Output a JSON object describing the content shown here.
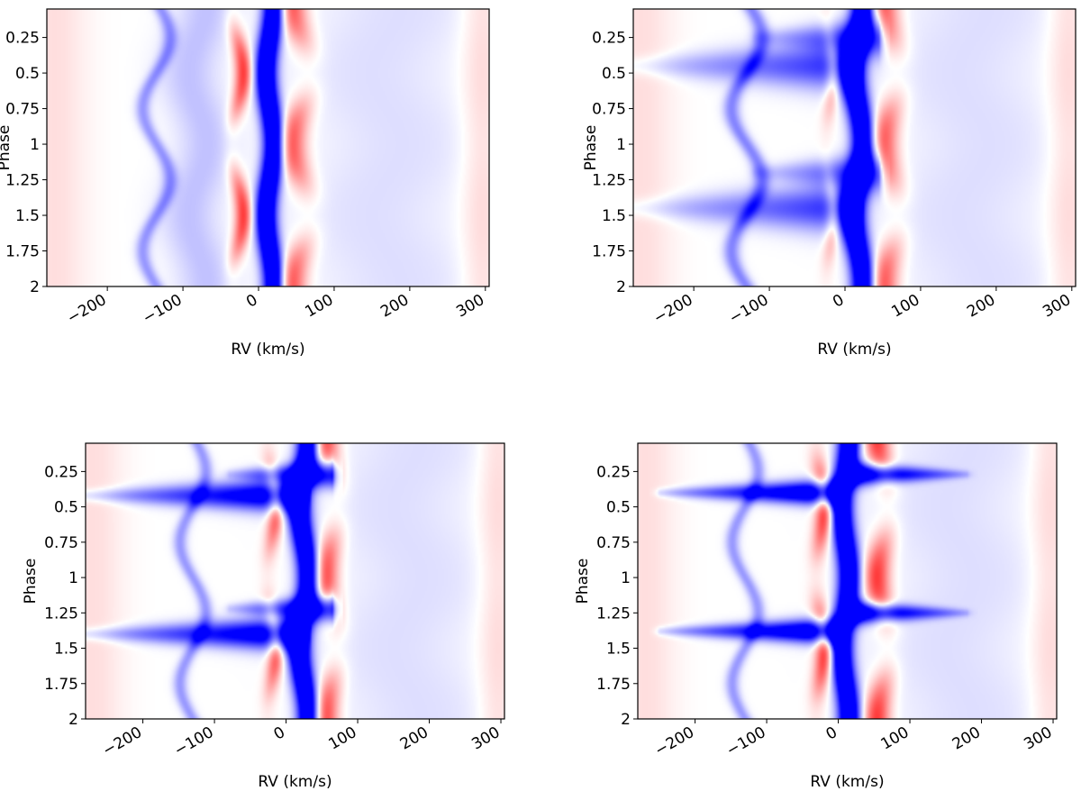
{
  "chart_data": [
    {
      "type": "heatmap",
      "panel": "top-left",
      "xlabel": "RV (km/s)",
      "ylabel": "Phase",
      "xlim": [
        -280,
        305
      ],
      "ylim": [
        0.05,
        2.0
      ],
      "y_inverted": true,
      "xticks": [
        -200,
        -100,
        0,
        100,
        200,
        300
      ],
      "xtick_labels": [
        "−200",
        "−100",
        "0",
        "100",
        "200",
        "300"
      ],
      "yticks": [
        0.25,
        0.5,
        0.75,
        1,
        1.25,
        1.5,
        1.75,
        2
      ],
      "ytick_labels": [
        "0.25",
        "0.5",
        "0.75",
        "1",
        "1.25",
        "1.5",
        "1.75",
        "2"
      ],
      "colormap": [
        "#0000ff",
        "#ffffff",
        "#ff0000"
      ],
      "features": [
        {
          "kind": "band",
          "sign": -1,
          "v0": 15,
          "amp": 5,
          "phase_offset": 0.0,
          "width": 10,
          "strength": 1.0
        },
        {
          "kind": "band",
          "sign": 1,
          "v0": 55,
          "amp": -12,
          "phase_offset": 0.0,
          "width": 14,
          "strength": 0.45,
          "modulated": true
        },
        {
          "kind": "band",
          "sign": 1,
          "v0": -28,
          "amp": 8,
          "phase_offset": 0.5,
          "width": 8,
          "strength": 0.5,
          "modulated": true
        },
        {
          "kind": "band",
          "sign": -1,
          "v0": -135,
          "amp": 18,
          "phase_offset": 0.25,
          "width": 7,
          "strength": 0.25
        },
        {
          "kind": "band",
          "sign": -1,
          "v0": -80,
          "amp": 12,
          "phase_offset": 0.0,
          "width": 28,
          "strength": 0.15
        },
        {
          "kind": "band",
          "sign": 1,
          "v0": -270,
          "amp": 0,
          "phase_offset": 0.0,
          "width": 30,
          "strength": 0.08
        },
        {
          "kind": "band",
          "sign": 1,
          "v0": 295,
          "amp": 0,
          "phase_offset": 0.0,
          "width": 20,
          "strength": 0.1
        },
        {
          "kind": "band",
          "sign": -1,
          "v0": 170,
          "amp": 20,
          "phase_offset": 0.0,
          "width": 80,
          "strength": 0.08
        }
      ]
    },
    {
      "type": "heatmap",
      "panel": "top-right",
      "xlabel": "RV (km/s)",
      "ylabel": "Phase",
      "xlim": [
        -280,
        305
      ],
      "ylim": [
        0.05,
        2.0
      ],
      "y_inverted": true,
      "xticks": [
        -200,
        -100,
        0,
        100,
        200,
        300
      ],
      "xtick_labels": [
        "−200",
        "−100",
        "0",
        "100",
        "200",
        "300"
      ],
      "yticks": [
        0.25,
        0.5,
        0.75,
        1,
        1.25,
        1.5,
        1.75,
        2
      ],
      "ytick_labels": [
        "0.25",
        "0.5",
        "0.75",
        "1",
        "1.25",
        "1.5",
        "1.75",
        "2"
      ],
      "colormap": [
        "#0000ff",
        "#ffffff",
        "#ff0000"
      ],
      "features": [
        {
          "kind": "band",
          "sign": -1,
          "v0": 18,
          "amp": 6,
          "phase_offset": 0.0,
          "width": 11,
          "strength": 1.0
        },
        {
          "kind": "band",
          "sign": 1,
          "v0": 60,
          "amp": -10,
          "phase_offset": 0.0,
          "width": 14,
          "strength": 0.45,
          "modulated": true
        },
        {
          "kind": "band",
          "sign": 1,
          "v0": -20,
          "amp": 5,
          "phase_offset": 0.5,
          "width": 7,
          "strength": 0.3,
          "modulated": true
        },
        {
          "kind": "band",
          "sign": -1,
          "v0": -130,
          "amp": 20,
          "phase_offset": 0.25,
          "width": 8,
          "strength": 0.3
        },
        {
          "kind": "jet",
          "sign": -1,
          "phase": 0.45,
          "v_start": 10,
          "v_end": -280,
          "width_phase": 0.09,
          "strength": 0.55
        },
        {
          "kind": "jet",
          "sign": -1,
          "phase": 1.45,
          "v_start": 10,
          "v_end": -280,
          "width_phase": 0.09,
          "strength": 0.55
        },
        {
          "kind": "jet",
          "sign": -1,
          "phase": 0.25,
          "v_start": 45,
          "v_end": -120,
          "width_phase": 0.07,
          "strength": 0.5
        },
        {
          "kind": "jet",
          "sign": -1,
          "phase": 1.2,
          "v_start": 45,
          "v_end": -120,
          "width_phase": 0.07,
          "strength": 0.5
        },
        {
          "kind": "band",
          "sign": 1,
          "v0": -270,
          "amp": 0,
          "phase_offset": 0.0,
          "width": 30,
          "strength": 0.08
        },
        {
          "kind": "band",
          "sign": 1,
          "v0": 295,
          "amp": 0,
          "phase_offset": 0.0,
          "width": 20,
          "strength": 0.1
        },
        {
          "kind": "band",
          "sign": -1,
          "v0": 170,
          "amp": 20,
          "phase_offset": 0.0,
          "width": 80,
          "strength": 0.08
        }
      ]
    },
    {
      "type": "heatmap",
      "panel": "bottom-left",
      "xlabel": "RV (km/s)",
      "ylabel": "Phase",
      "xlim": [
        -280,
        305
      ],
      "ylim": [
        0.05,
        2.0
      ],
      "y_inverted": true,
      "xticks": [
        -200,
        -100,
        0,
        100,
        200,
        300
      ],
      "xtick_labels": [
        "−200",
        "−100",
        "0",
        "100",
        "200",
        "300"
      ],
      "yticks": [
        0.25,
        0.5,
        0.75,
        1,
        1.25,
        1.5,
        1.75,
        2
      ],
      "ytick_labels": [
        "0.25",
        "0.5",
        "0.75",
        "1",
        "1.25",
        "1.5",
        "1.75",
        "2"
      ],
      "colormap": [
        "#0000ff",
        "#ffffff",
        "#ff0000"
      ],
      "features": [
        {
          "kind": "band",
          "sign": -1,
          "v0": 25,
          "amp": 6,
          "phase_offset": 0.0,
          "width": 11,
          "strength": 1.0
        },
        {
          "kind": "band",
          "sign": 1,
          "v0": 62,
          "amp": -8,
          "phase_offset": 0.0,
          "width": 13,
          "strength": 0.5,
          "modulated": true
        },
        {
          "kind": "band",
          "sign": 1,
          "v0": -20,
          "amp": 6,
          "phase_offset": 0.5,
          "width": 8,
          "strength": 0.45,
          "modulated": true
        },
        {
          "kind": "band",
          "sign": -1,
          "v0": -130,
          "amp": 18,
          "phase_offset": 0.25,
          "width": 7,
          "strength": 0.25
        },
        {
          "kind": "jet",
          "sign": -1,
          "phase": 0.42,
          "v_start": 20,
          "v_end": -280,
          "width_phase": 0.06,
          "strength": 0.9
        },
        {
          "kind": "jet",
          "sign": -1,
          "phase": 1.4,
          "v_start": 20,
          "v_end": -280,
          "width_phase": 0.06,
          "strength": 0.9
        },
        {
          "kind": "jet",
          "sign": -1,
          "phase": 0.27,
          "v_start": 65,
          "v_end": -80,
          "width_phase": 0.05,
          "strength": 0.8
        },
        {
          "kind": "jet",
          "sign": -1,
          "phase": 1.22,
          "v_start": 65,
          "v_end": -80,
          "width_phase": 0.05,
          "strength": 0.8
        },
        {
          "kind": "band",
          "sign": 1,
          "v0": -270,
          "amp": 0,
          "phase_offset": 0.0,
          "width": 30,
          "strength": 0.08
        },
        {
          "kind": "band",
          "sign": 1,
          "v0": 295,
          "amp": 0,
          "phase_offset": 0.0,
          "width": 20,
          "strength": 0.1
        },
        {
          "kind": "band",
          "sign": -1,
          "v0": 170,
          "amp": 20,
          "phase_offset": 0.0,
          "width": 80,
          "strength": 0.08
        }
      ]
    },
    {
      "type": "heatmap",
      "panel": "bottom-right",
      "xlabel": "RV (km/s)",
      "ylabel": "Phase",
      "xlim": [
        -280,
        305
      ],
      "ylim": [
        0.05,
        2.0
      ],
      "y_inverted": true,
      "xticks": [
        -200,
        -100,
        0,
        100,
        200,
        300
      ],
      "xtick_labels": [
        "−200",
        "−100",
        "0",
        "100",
        "200",
        "300"
      ],
      "yticks": [
        0.25,
        0.5,
        0.75,
        1,
        1.25,
        1.5,
        1.75,
        2
      ],
      "ytick_labels": [
        "0.25",
        "0.5",
        "0.75",
        "1",
        "1.25",
        "1.5",
        "1.75",
        "2"
      ],
      "colormap": [
        "#0000ff",
        "#ffffff",
        "#ff0000"
      ],
      "features": [
        {
          "kind": "band",
          "sign": -1,
          "v0": 10,
          "amp": 5,
          "phase_offset": 0.0,
          "width": 11,
          "strength": 1.0
        },
        {
          "kind": "band",
          "sign": 1,
          "v0": 62,
          "amp": -8,
          "phase_offset": 0.0,
          "width": 13,
          "strength": 0.5,
          "modulated": true
        },
        {
          "kind": "band",
          "sign": 1,
          "v0": -25,
          "amp": 6,
          "phase_offset": 0.5,
          "width": 9,
          "strength": 0.55,
          "modulated": true
        },
        {
          "kind": "band",
          "sign": -1,
          "v0": -130,
          "amp": 18,
          "phase_offset": 0.25,
          "width": 7,
          "strength": 0.25
        },
        {
          "kind": "jet",
          "sign": -1,
          "phase": 0.4,
          "v_start": -5,
          "v_end": -250,
          "width_phase": 0.045,
          "strength": 1.0
        },
        {
          "kind": "jet",
          "sign": -1,
          "phase": 1.38,
          "v_start": -5,
          "v_end": -250,
          "width_phase": 0.045,
          "strength": 1.0
        },
        {
          "kind": "jet",
          "sign": -1,
          "phase": 0.27,
          "v_start": 20,
          "v_end": 180,
          "width_phase": 0.04,
          "strength": 0.95
        },
        {
          "kind": "jet",
          "sign": -1,
          "phase": 1.25,
          "v_start": 20,
          "v_end": 180,
          "width_phase": 0.04,
          "strength": 0.95
        },
        {
          "kind": "band",
          "sign": 1,
          "v0": -270,
          "amp": 0,
          "phase_offset": 0.0,
          "width": 30,
          "strength": 0.08
        },
        {
          "kind": "band",
          "sign": 1,
          "v0": 295,
          "amp": 0,
          "phase_offset": 0.0,
          "width": 20,
          "strength": 0.1
        },
        {
          "kind": "band",
          "sign": -1,
          "v0": 170,
          "amp": 20,
          "phase_offset": 0.0,
          "width": 80,
          "strength": 0.08
        }
      ]
    }
  ]
}
